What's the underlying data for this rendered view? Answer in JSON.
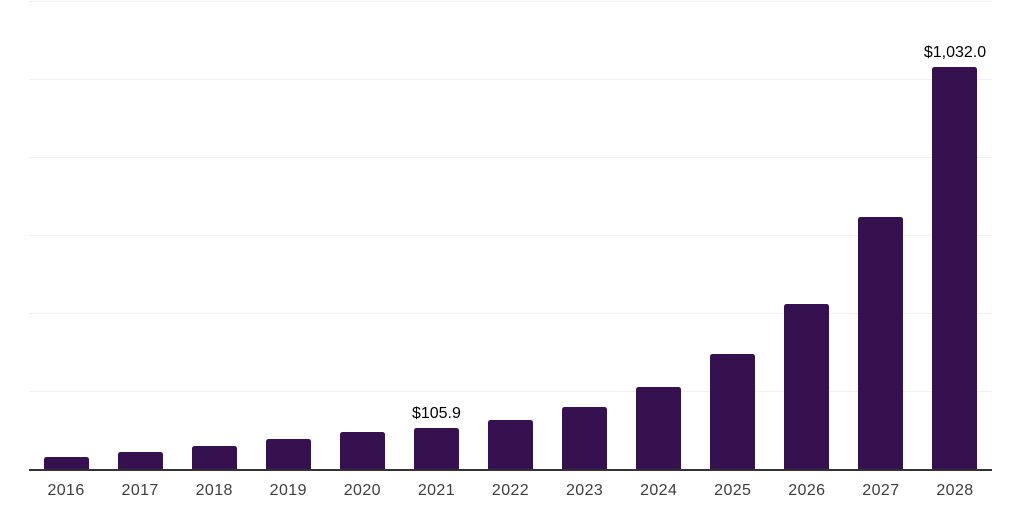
{
  "chart_data": {
    "type": "bar",
    "title": "",
    "xlabel": "",
    "ylabel": "",
    "ylim": [
      0,
      1200
    ],
    "gridline_step": 200,
    "grid": "horizontal",
    "legend": "none",
    "categories": [
      "2016",
      "2017",
      "2018",
      "2019",
      "2020",
      "2021",
      "2022",
      "2023",
      "2024",
      "2025",
      "2026",
      "2027",
      "2028"
    ],
    "values": [
      31,
      44,
      60,
      78,
      95,
      105.9,
      125,
      160,
      210,
      295,
      422,
      647,
      1032
    ],
    "value_labels": [
      "",
      "",
      "",
      "",
      "",
      "$105.9",
      "",
      "",
      "",
      "",
      "",
      "",
      "$1,032.0"
    ]
  },
  "style": {
    "background": "#ffffff",
    "bar_color": "#361150",
    "gridline_color": "#f0f0f0",
    "axis_line_color": "#333333",
    "value_label_color": "#000000",
    "category_label_color": "#3d3d3d"
  }
}
